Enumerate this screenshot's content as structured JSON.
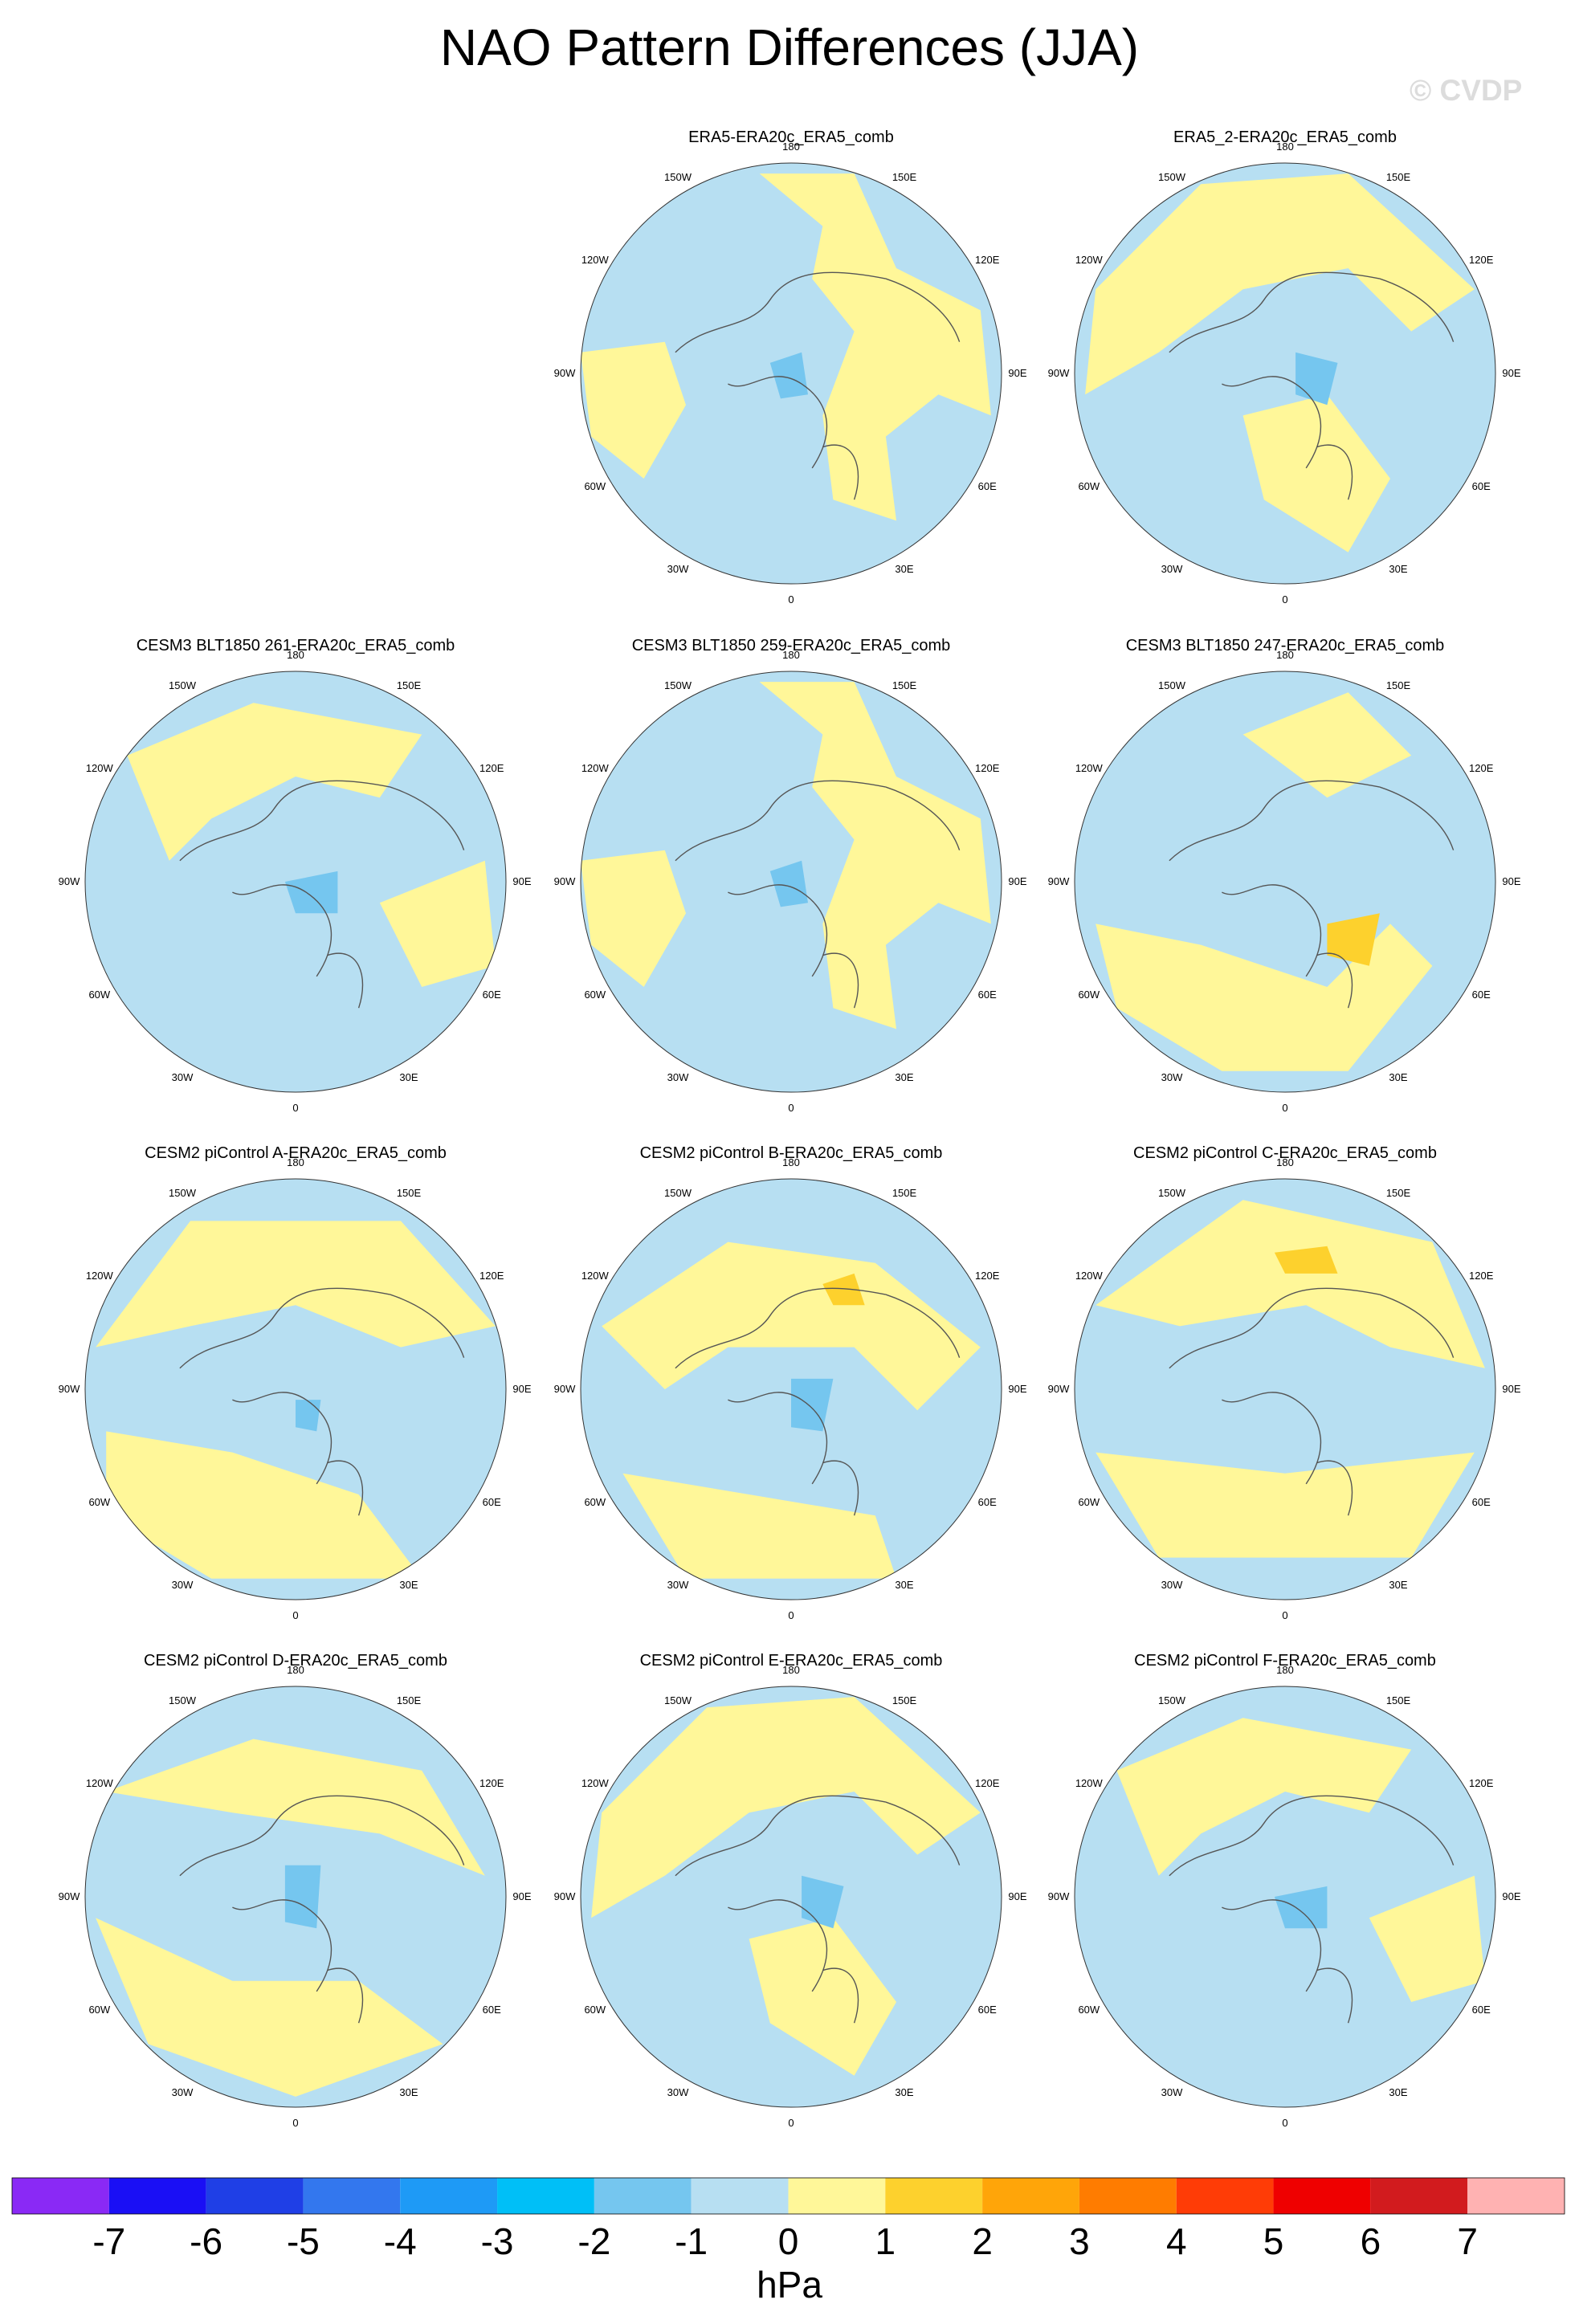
{
  "title": "NAO Pattern Differences (JJA)",
  "watermark": "© CVDP",
  "units": "hPa",
  "longitude_labels": [
    "180",
    "150E",
    "120E",
    "90E",
    "60E",
    "30E",
    "0",
    "30W",
    "60W",
    "90W",
    "120W",
    "150W"
  ],
  "colors": {
    "positive_1": "#fff799",
    "negative_1": "#b7dff2",
    "positive_2": "#fdd12d",
    "negative_2": "#75c6ef",
    "coast": "#555555",
    "rim": "#333333"
  },
  "colorbar": {
    "colors": [
      "#8a29f5",
      "#1a0ff5",
      "#1f3fe6",
      "#3377ee",
      "#1e9af6",
      "#00bff7",
      "#75c6ef",
      "#b7dff2",
      "#fff799",
      "#fdd12d",
      "#ffa509",
      "#ff7c00",
      "#ff3c06",
      "#ef0000",
      "#d21b1e",
      "#ffb2b2"
    ],
    "labels": [
      "-7",
      "-6",
      "-5",
      "-4",
      "-3",
      "-2",
      "-1",
      "0",
      "1",
      "2",
      "3",
      "4",
      "5",
      "6",
      "7"
    ]
  },
  "panels": [
    {
      "id": "era5",
      "title": "ERA5-ERA20c_ERA5_comb",
      "row": 0,
      "col": 1,
      "pattern": "a"
    },
    {
      "id": "era5-2",
      "title": "ERA5_2-ERA20c_ERA5_comb",
      "row": 0,
      "col": 2,
      "pattern": "b"
    },
    {
      "id": "cesm3-261",
      "title": "CESM3 BLT1850 261-ERA20c_ERA5_comb",
      "row": 1,
      "col": 0,
      "pattern": "c"
    },
    {
      "id": "cesm3-259",
      "title": "CESM3 BLT1850 259-ERA20c_ERA5_comb",
      "row": 1,
      "col": 1,
      "pattern": "a"
    },
    {
      "id": "cesm3-247",
      "title": "CESM3 BLT1850 247-ERA20c_ERA5_comb",
      "row": 1,
      "col": 2,
      "pattern": "d"
    },
    {
      "id": "cesm2-a",
      "title": "CESM2 piControl A-ERA20c_ERA5_comb",
      "row": 2,
      "col": 0,
      "pattern": "e"
    },
    {
      "id": "cesm2-b",
      "title": "CESM2 piControl B-ERA20c_ERA5_comb",
      "row": 2,
      "col": 1,
      "pattern": "f"
    },
    {
      "id": "cesm2-c",
      "title": "CESM2 piControl C-ERA20c_ERA5_comb",
      "row": 2,
      "col": 2,
      "pattern": "g"
    },
    {
      "id": "cesm2-d",
      "title": "CESM2 piControl D-ERA20c_ERA5_comb",
      "row": 3,
      "col": 0,
      "pattern": "h"
    },
    {
      "id": "cesm2-e",
      "title": "CESM2 piControl E-ERA20c_ERA5_comb",
      "row": 3,
      "col": 1,
      "pattern": "b"
    },
    {
      "id": "cesm2-f",
      "title": "CESM2 piControl F-ERA20c_ERA5_comb",
      "row": 3,
      "col": 2,
      "pattern": "c"
    }
  ]
}
